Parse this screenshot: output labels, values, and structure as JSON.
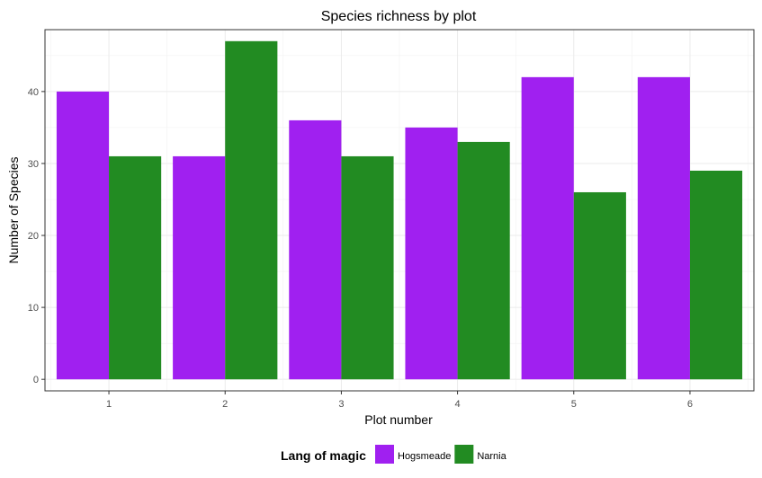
{
  "chart_data": {
    "type": "bar",
    "title": "Species richness by plot",
    "xlabel": "Plot number",
    "ylabel": "Number of Species",
    "categories": [
      "1",
      "2",
      "3",
      "4",
      "5",
      "6"
    ],
    "series": [
      {
        "name": "Hogsmeade",
        "color": "#a020f0",
        "values": [
          40,
          31,
          36,
          35,
          42,
          42
        ]
      },
      {
        "name": "Narnia",
        "color": "#228b22",
        "values": [
          31,
          47,
          31,
          33,
          26,
          29
        ]
      }
    ],
    "ylim": [
      -1.6,
      48.6
    ],
    "yticks": [
      "0",
      "10",
      "20",
      "30",
      "40"
    ],
    "grid": true,
    "legend": {
      "title": "Lang of magic",
      "position": "bottom"
    }
  }
}
